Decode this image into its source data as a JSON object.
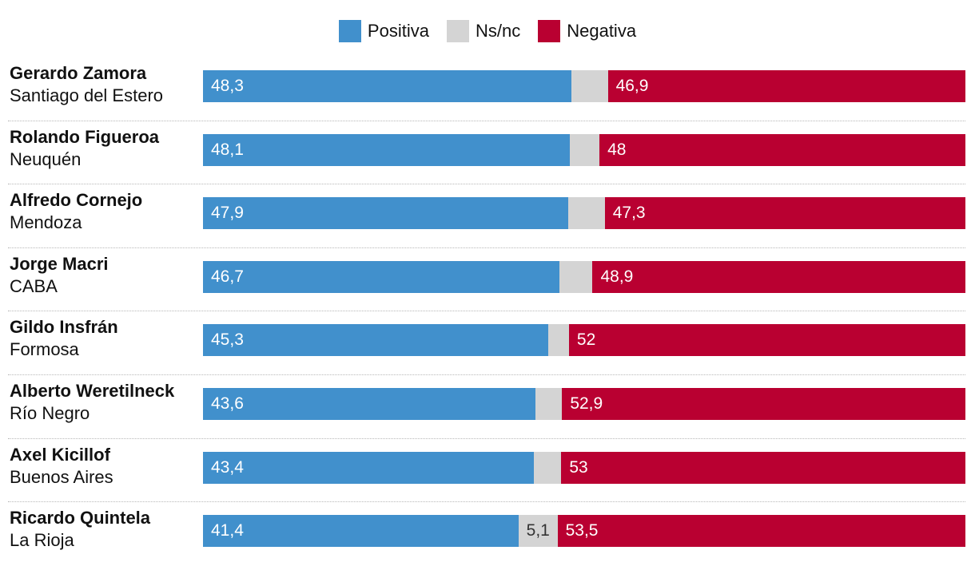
{
  "legend": {
    "positive_label": "Positiva",
    "ns_label": "Ns/nc",
    "negative_label": "Negativa"
  },
  "colors": {
    "positive": "#4190cc",
    "ns": "#d4d4d4",
    "negative": "#b90031"
  },
  "chart_data": {
    "type": "bar",
    "orientation": "horizontal",
    "stacked": true,
    "title": "",
    "xlabel": "",
    "ylabel": "",
    "xlim": [
      0,
      100
    ],
    "categories": [
      {
        "name": "Gerardo Zamora",
        "province": "Santiago del Estero"
      },
      {
        "name": "Rolando Figueroa",
        "province": "Neuquén"
      },
      {
        "name": "Alfredo Cornejo",
        "province": "Mendoza"
      },
      {
        "name": "Jorge Macri",
        "province": "CABA"
      },
      {
        "name": "Gildo Insfrán",
        "province": "Formosa"
      },
      {
        "name": "Alberto Weretilneck",
        "province": "Río Negro"
      },
      {
        "name": "Axel Kicillof",
        "province": "Buenos Aires"
      },
      {
        "name": "Ricardo Quintela",
        "province": "La Rioja"
      }
    ],
    "series": [
      {
        "name": "Positiva",
        "key": "pos",
        "values": [
          48.3,
          48.1,
          47.9,
          46.7,
          45.3,
          43.6,
          43.4,
          41.4
        ],
        "labels": [
          "48,3",
          "48,1",
          "47,9",
          "46,7",
          "45,3",
          "43,6",
          "43,4",
          "41,4"
        ]
      },
      {
        "name": "Ns/nc",
        "key": "ns",
        "values": [
          4.8,
          3.9,
          4.8,
          4.4,
          2.7,
          3.5,
          3.6,
          5.1
        ],
        "labels": [
          "",
          "",
          "",
          "",
          "",
          "",
          "",
          "5,1"
        ]
      },
      {
        "name": "Negativa",
        "key": "neg",
        "values": [
          46.9,
          48,
          47.3,
          48.9,
          52,
          52.9,
          53,
          53.5
        ],
        "labels": [
          "46,9",
          "48",
          "47,3",
          "48,9",
          "52",
          "52,9",
          "53",
          "53,5"
        ]
      }
    ]
  }
}
